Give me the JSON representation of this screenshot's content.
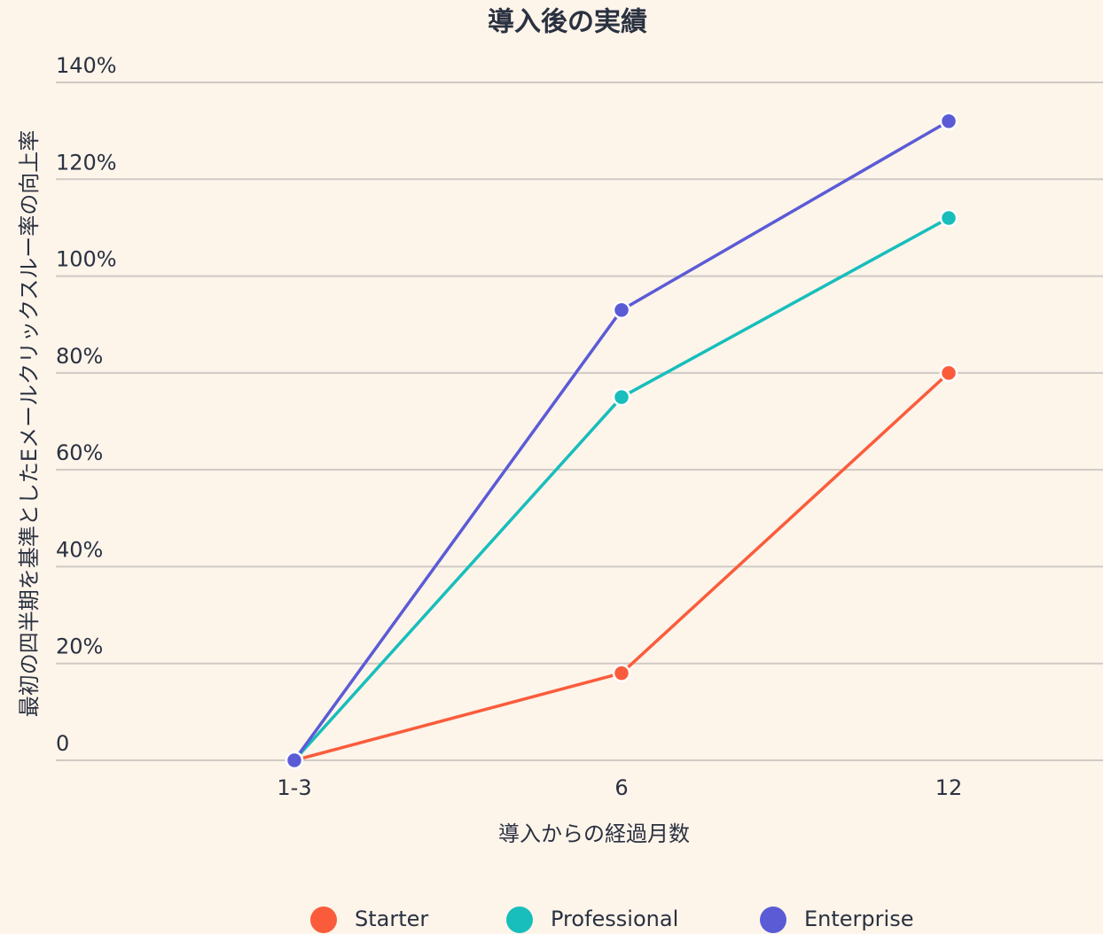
{
  "chart_data": {
    "type": "line",
    "title": "導入後の実績",
    "x_label": "導入からの経過月数",
    "y_label": "最初の四半期を基準としたEメールクリックスルー率の向上率",
    "categories": [
      "1-3",
      "6",
      "12"
    ],
    "series": [
      {
        "name": "Starter",
        "color": "#fa5c3b",
        "values": [
          0,
          18,
          80
        ]
      },
      {
        "name": "Professional",
        "color": "#17bebb",
        "values": [
          0,
          75,
          112
        ]
      },
      {
        "name": "Enterprise",
        "color": "#5b5bd6",
        "values": [
          0,
          93,
          132
        ]
      }
    ],
    "ylim": [
      0,
      140
    ],
    "yticks": [
      0,
      {
        "value": 20,
        "label": "20%"
      },
      {
        "value": 40,
        "label": "40%"
      },
      {
        "value": 60,
        "label": "60%"
      },
      {
        "value": 80,
        "label": "80%"
      },
      {
        "value": 100,
        "label": "100%"
      },
      {
        "value": 120,
        "label": "120%"
      },
      {
        "value": 140,
        "label": "140%"
      }
    ],
    "grid": true,
    "legend": "bottom"
  }
}
